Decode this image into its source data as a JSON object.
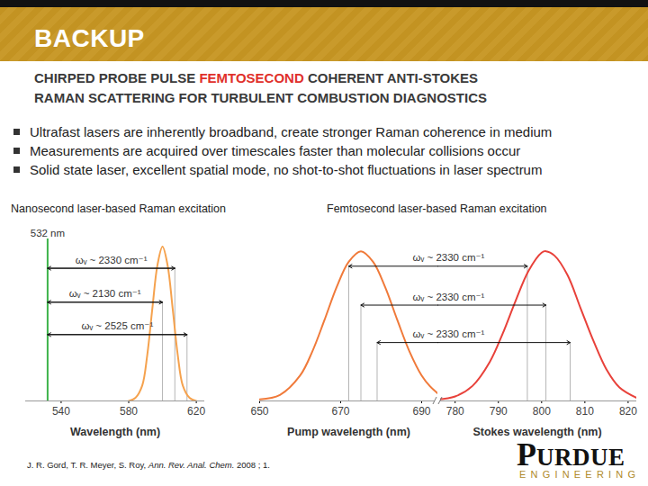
{
  "slide": {
    "header": "BACKUP",
    "subtitle": {
      "line1": [
        {
          "text": "CHIRPED PROBE PULSE ",
          "color": "#3a3a3a"
        },
        {
          "text": "FEMTOSECOND",
          "color": "#e0302a"
        },
        {
          "text": " COHERENT ANTI-STOKES",
          "color": "#3a3a3a"
        }
      ],
      "line2": "RAMAN SCATTERING FOR TURBULENT COMBUSTION DIAGNOSTICS"
    },
    "bullets": [
      "Ultrafast lasers are inherently broadband, create stronger Raman coherence in medium",
      "Measurements are acquired over timescales faster than molecular collisions occur",
      "Solid state laser, excellent spatial mode, no shot-to-shot fluctuations in laser spectrum"
    ],
    "citation": [
      {
        "text": "J. R. Gord, T. R. Meyer, S. Roy, ",
        "italic": false
      },
      {
        "text": "Ann. Rev. Anal. Chem.",
        "italic": true
      },
      {
        "text": " 2008 ; 1.",
        "italic": false
      }
    ],
    "logo": {
      "name": "PURDUE",
      "sub": "ENGINEERING"
    }
  },
  "chart_data": [
    {
      "type": "line",
      "title": "Nanosecond laser-based Raman excitation",
      "xlabel": "Wavelength (nm)",
      "xlim": [
        519,
        625
      ],
      "xticks": [
        540,
        580,
        620
      ],
      "ylim": [
        0,
        1.05
      ],
      "tick_labels": "x",
      "laser_line": {
        "x": 532,
        "label": "532 nm",
        "color": "#3db34a"
      },
      "series": [
        {
          "color": "#f5a24e",
          "x": [
            580,
            584,
            588,
            591,
            594,
            597,
            600,
            603,
            606,
            609,
            612,
            616,
            620
          ],
          "values": [
            0,
            0.02,
            0.1,
            0.3,
            0.6,
            0.88,
            1.0,
            0.88,
            0.6,
            0.3,
            0.1,
            0.02,
            0
          ]
        }
      ],
      "annotations": [
        {
          "text": "ωᵥ ~ 2330 cm⁻¹",
          "from": 532,
          "to": 607.3,
          "y": 0.86
        },
        {
          "text": "ωᵥ ~ 2130 cm⁻¹",
          "from": 532,
          "to": 600,
          "y": 0.64
        },
        {
          "text": "ωᵥ ~ 2525 cm⁻¹",
          "from": 532,
          "to": 614.5,
          "y": 0.43
        }
      ]
    },
    {
      "type": "line",
      "title": "Femtosecond laser-based Raman excitation",
      "ylim": [
        0,
        1.1
      ],
      "tick_labels": "x",
      "panels": [
        {
          "xlabel": "Pump wavelength (nm)",
          "xlim": [
            650,
            694
          ],
          "xticks": [
            650,
            670,
            690
          ],
          "series": [
            {
              "color": "#f07a3a",
              "x": [
                650,
                655,
                660,
                663,
                666,
                669,
                672,
                675,
                678,
                681,
                684,
                687,
                690,
                692,
                694
              ],
              "values": [
                0.01,
                0.04,
                0.17,
                0.33,
                0.54,
                0.76,
                0.93,
                1.0,
                0.93,
                0.76,
                0.54,
                0.33,
                0.17,
                0.1,
                0.05
              ]
            }
          ]
        },
        {
          "xlabel": "Stokes wavelength (nm)",
          "xlim": [
            776,
            822
          ],
          "xticks": [
            780,
            790,
            800,
            810,
            820
          ],
          "series": [
            {
              "color": "#e8413a",
              "x": [
                776,
                780,
                784,
                788,
                791,
                794,
                797,
                800,
                801,
                803,
                806,
                809,
                812,
                815,
                818,
                822
              ],
              "values": [
                0.01,
                0.03,
                0.1,
                0.26,
                0.45,
                0.67,
                0.87,
                0.99,
                1.0,
                0.97,
                0.84,
                0.62,
                0.4,
                0.21,
                0.09,
                0.02
              ]
            }
          ]
        }
      ],
      "annotations": [
        {
          "text": "ωᵥ ~ 2330 cm⁻¹",
          "from": 672,
          "to": 796.7,
          "y": 0.9
        },
        {
          "text": "ωᵥ ~ 2330 cm⁻¹",
          "from": 675,
          "to": 801,
          "y": 0.64
        },
        {
          "text": "ωᵥ ~ 2330 cm⁻¹",
          "from": 679,
          "to": 806.6,
          "y": 0.39
        }
      ]
    }
  ]
}
